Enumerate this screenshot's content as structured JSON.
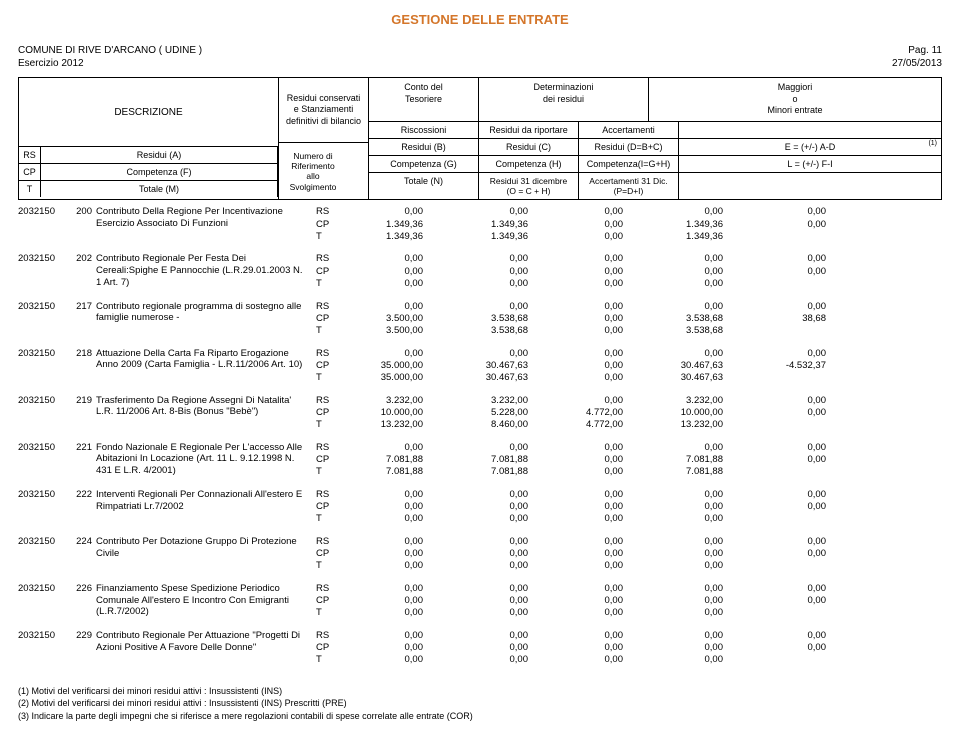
{
  "title": "GESTIONE DELLE ENTRATE",
  "comune": "COMUNE DI RIVE D'ARCANO ( UDINE )",
  "pag": "Pag.   11",
  "esercizio_label": "Esercizio  2012",
  "date": "27/05/2013",
  "header": {
    "descrizione": "DESCRIZIONE",
    "residui_stanz": "Residui conservati\ne Stanziamenti\ndefinitivi di bilancio",
    "numero_rif": "Numero di\nRiferimento\nallo\nSvolgimento",
    "conto": "Conto del\nTesoriere",
    "determin": "Determinazioni\ndei residui",
    "maggiori": "Maggiori\no\nMinori entrate",
    "riscossioni": "Riscossioni",
    "residui_rip": "Residui da riportare",
    "accertamenti": "Accertamenti",
    "rs": "RS",
    "residuiA": "Residui (A)",
    "residuiB": "Residui (B)",
    "residuiC": "Residui (C)",
    "residuiD": "Residui (D=B+C)",
    "eAD": "E = (+/-) A-D",
    "cp": "CP",
    "compF": "Competenza (F)",
    "compG": "Competenza (G)",
    "compH": "Competenza (H)",
    "compI": "Competenza(I=G+H)",
    "lFI": "L = (+/-) F-I",
    "t": "T",
    "totM": "Totale (M)",
    "totN": "Totale (N)",
    "res31": "Residui 31 dicembre\n(O = C + H)",
    "acc31": "Accertamenti 31 Dic.\n(P=D+I)",
    "note1": "(1)"
  },
  "rows": [
    {
      "code": "2032150",
      "n": "200",
      "desc": "Contributo Della Regione Per Incentivazione Esercizio Associato Di Funzioni",
      "rs": [
        "0,00",
        "0,00",
        "0,00",
        "0,00",
        "0,00"
      ],
      "cp": [
        "1.349,36",
        "1.349,36",
        "0,00",
        "1.349,36",
        "0,00"
      ],
      "t": [
        "1.349,36",
        "1.349,36",
        "0,00",
        "1.349,36",
        ""
      ]
    },
    {
      "code": "2032150",
      "n": "202",
      "desc": "Contributo Regionale Per Festa Dei Cereali:Spighe E Pannocchie (L.R.29.01.2003 N. 1 Art. 7)",
      "rs": [
        "0,00",
        "0,00",
        "0,00",
        "0,00",
        "0,00"
      ],
      "cp": [
        "0,00",
        "0,00",
        "0,00",
        "0,00",
        "0,00"
      ],
      "t": [
        "0,00",
        "0,00",
        "0,00",
        "0,00",
        ""
      ]
    },
    {
      "code": "2032150",
      "n": "217",
      "desc": "Contributo regionale programma di sostegno alle famiglie numerose -",
      "rs": [
        "0,00",
        "0,00",
        "0,00",
        "0,00",
        "0,00"
      ],
      "cp": [
        "3.500,00",
        "3.538,68",
        "0,00",
        "3.538,68",
        "38,68"
      ],
      "t": [
        "3.500,00",
        "3.538,68",
        "0,00",
        "3.538,68",
        ""
      ]
    },
    {
      "code": "2032150",
      "n": "218",
      "desc": "Attuazione Della Carta Fa Riparto Erogazione Anno 2009 (Carta Famiglia - L.R.11/2006 Art. 10)",
      "rs": [
        "0,00",
        "0,00",
        "0,00",
        "0,00",
        "0,00"
      ],
      "cp": [
        "35.000,00",
        "30.467,63",
        "0,00",
        "30.467,63",
        "-4.532,37"
      ],
      "t": [
        "35.000,00",
        "30.467,63",
        "0,00",
        "30.467,63",
        ""
      ]
    },
    {
      "code": "2032150",
      "n": "219",
      "desc": "Trasferimento Da Regione Assegni Di Natalita' L.R. 11/2006 Art. 8-Bis (Bonus \"Bebè\")",
      "rs": [
        "3.232,00",
        "3.232,00",
        "0,00",
        "3.232,00",
        "0,00"
      ],
      "cp": [
        "10.000,00",
        "5.228,00",
        "4.772,00",
        "10.000,00",
        "0,00"
      ],
      "t": [
        "13.232,00",
        "8.460,00",
        "4.772,00",
        "13.232,00",
        ""
      ]
    },
    {
      "code": "2032150",
      "n": "221",
      "desc": "Fondo Nazionale E Regionale Per L'accesso Alle Abitazioni In Locazione (Art. 11 L. 9.12.1998 N. 431 E L.R. 4/2001)",
      "rs": [
        "0,00",
        "0,00",
        "0,00",
        "0,00",
        "0,00"
      ],
      "cp": [
        "7.081,88",
        "7.081,88",
        "0,00",
        "7.081,88",
        "0,00"
      ],
      "t": [
        "7.081,88",
        "7.081,88",
        "0,00",
        "7.081,88",
        ""
      ]
    },
    {
      "code": "2032150",
      "n": "222",
      "desc": "Interventi Regionali Per Connazionali All'estero E Rimpatriati Lr.7/2002",
      "rs": [
        "0,00",
        "0,00",
        "0,00",
        "0,00",
        "0,00"
      ],
      "cp": [
        "0,00",
        "0,00",
        "0,00",
        "0,00",
        "0,00"
      ],
      "t": [
        "0,00",
        "0,00",
        "0,00",
        "0,00",
        ""
      ]
    },
    {
      "code": "2032150",
      "n": "224",
      "desc": "Contributo Per Dotazione Gruppo Di Protezione Civile",
      "rs": [
        "0,00",
        "0,00",
        "0,00",
        "0,00",
        "0,00"
      ],
      "cp": [
        "0,00",
        "0,00",
        "0,00",
        "0,00",
        "0,00"
      ],
      "t": [
        "0,00",
        "0,00",
        "0,00",
        "0,00",
        ""
      ]
    },
    {
      "code": "2032150",
      "n": "226",
      "desc": "Finanziamento Spese Spedizione Periodico Comunale All'estero E Incontro Con Emigranti (L.R.7/2002)",
      "rs": [
        "0,00",
        "0,00",
        "0,00",
        "0,00",
        "0,00"
      ],
      "cp": [
        "0,00",
        "0,00",
        "0,00",
        "0,00",
        "0,00"
      ],
      "t": [
        "0,00",
        "0,00",
        "0,00",
        "0,00",
        ""
      ]
    },
    {
      "code": "2032150",
      "n": "229",
      "desc": "Contributo Regionale Per Attuazione \"Progetti Di Azioni Positive A Favore Delle Donne\"",
      "rs": [
        "0,00",
        "0,00",
        "0,00",
        "0,00",
        "0,00"
      ],
      "cp": [
        "0,00",
        "0,00",
        "0,00",
        "0,00",
        "0,00"
      ],
      "t": [
        "0,00",
        "0,00",
        "0,00",
        "0,00",
        ""
      ]
    }
  ],
  "footnotes": [
    "(1) Motivi del verificarsi dei minori residui attivi : Insussistenti (INS)",
    "(2) Motivi del verificarsi dei minori residui attivi : Insussistenti (INS) Prescritti (PRE)",
    "(3) Indicare la parte degli impegni che si riferisce a mere regolazioni contabili di spese correlate alle entrate (COR)"
  ]
}
